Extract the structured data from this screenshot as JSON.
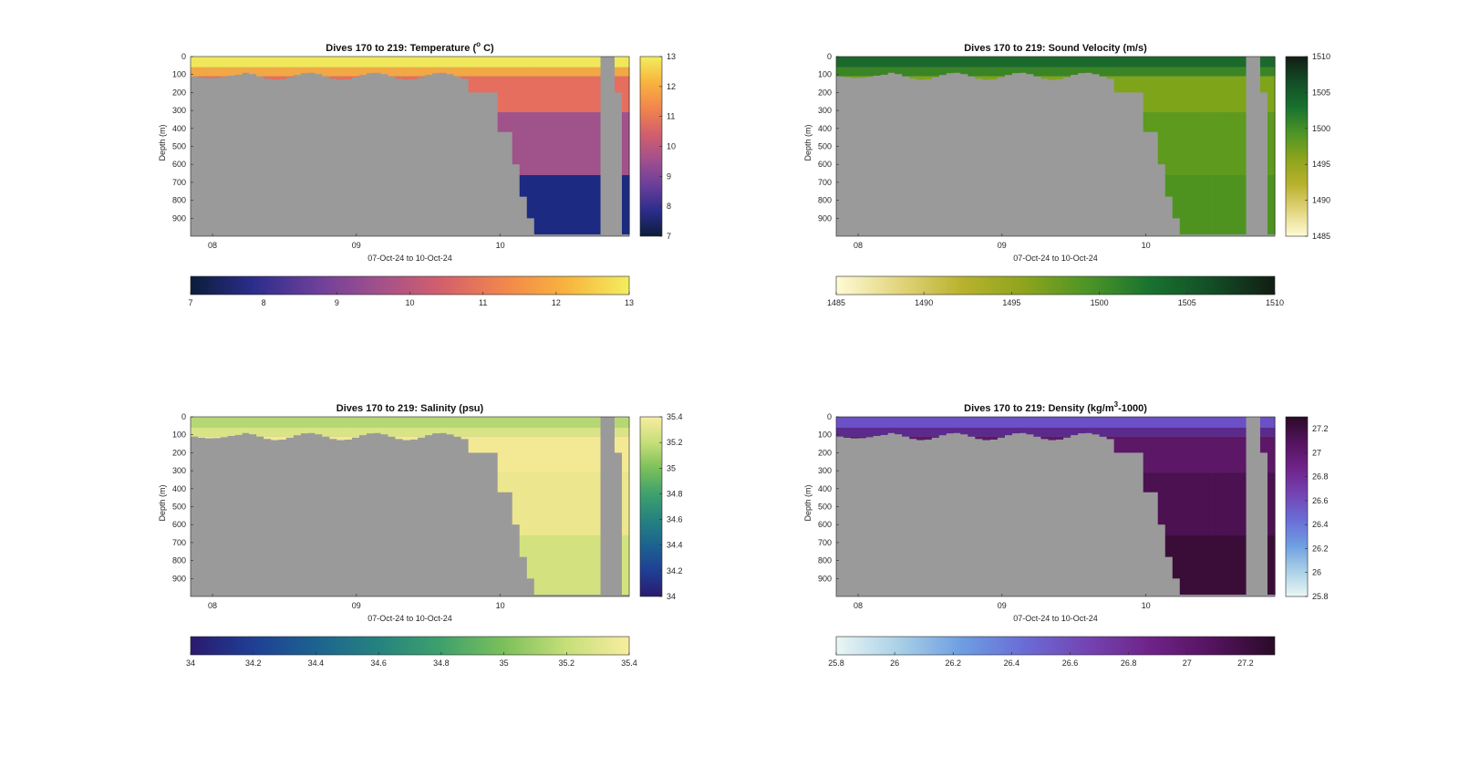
{
  "chart_data": [
    {
      "type": "heatmap",
      "title": "Dives 170 to 219: Temperature (°C)",
      "title_main": "Dives 170 to 219: Temperature (",
      "title_sup": "o",
      "title_tail": " C)",
      "ylabel": "Depth (m)",
      "xlabel": "07-Oct-24 to 10-Oct-24",
      "x_ticks": [
        "08",
        "09",
        "10"
      ],
      "y_ticks": [
        "0",
        "100",
        "200",
        "300",
        "400",
        "500",
        "600",
        "700",
        "800",
        "900"
      ],
      "ylim": [
        0,
        1000
      ],
      "colormap": [
        "#0b1d3a",
        "#2c2d8c",
        "#6b3f9a",
        "#a2508c",
        "#d35f6c",
        "#f2864c",
        "#f8b43e",
        "#f3ee5e"
      ],
      "clim": [
        7,
        13
      ],
      "colorbar_ticks": [
        "7",
        "8",
        "9",
        "10",
        "11",
        "12",
        "13"
      ],
      "deep_color": "#1c2a82",
      "mid_color": "#a0528a",
      "upper_color": "#e56e5f",
      "surface_color": "#f0e85a",
      "mixed_color": "#f1a845"
    },
    {
      "type": "heatmap",
      "title": "Dives 170 to 219: Sound Velocity (m/s)",
      "title_main": "Dives 170 to 219: Sound Velocity (m/s)",
      "title_sup": "",
      "title_tail": "",
      "ylabel": "Depth (m)",
      "xlabel": "07-Oct-24 to 10-Oct-24",
      "x_ticks": [
        "08",
        "09",
        "10"
      ],
      "y_ticks": [
        "0",
        "100",
        "200",
        "300",
        "400",
        "500",
        "600",
        "700",
        "800",
        "900"
      ],
      "ylim": [
        0,
        1000
      ],
      "colormap": [
        "#fefbd6",
        "#e2d57e",
        "#b9b22e",
        "#8ea41c",
        "#4d9526",
        "#19722f",
        "#134d26",
        "#111d14"
      ],
      "clim": [
        1485,
        1510
      ],
      "colorbar_ticks": [
        "1485",
        "1490",
        "1495",
        "1500",
        "1505",
        "1510"
      ],
      "deep_color": "#4e931f",
      "mid_color": "#5d9a1e",
      "upper_color": "#7ea41a",
      "surface_color": "#1b6a2c",
      "mixed_color": "#3a8426"
    },
    {
      "type": "heatmap",
      "title": "Dives 170 to 219: Salinity (psu)",
      "title_main": "Dives 170 to 219: Salinity (psu)",
      "title_sup": "",
      "title_tail": "",
      "ylabel": "Depth (m)",
      "xlabel": "07-Oct-24 to 10-Oct-24",
      "x_ticks": [
        "08",
        "09",
        "10"
      ],
      "y_ticks": [
        "0",
        "100",
        "200",
        "300",
        "400",
        "500",
        "600",
        "700",
        "800",
        "900"
      ],
      "ylim": [
        0,
        1000
      ],
      "colormap": [
        "#2a1a6e",
        "#1f3f94",
        "#1c6390",
        "#25837f",
        "#3ea16c",
        "#7cc05a",
        "#c6df79",
        "#f8ed9f"
      ],
      "clim": [
        34,
        35.4
      ],
      "colorbar_ticks": [
        "34",
        "34.2",
        "34.4",
        "34.6",
        "34.8",
        "35",
        "35.2",
        "35.4"
      ],
      "deep_color": "#d3e27e",
      "mid_color": "#ece68e",
      "upper_color": "#f3e994",
      "surface_color": "#b5d874",
      "mixed_color": "#d8e486"
    },
    {
      "type": "heatmap",
      "title": "Dives 170 to 219: Density (kg/m³-1000)",
      "title_main": "Dives 170 to 219: Density (kg/m",
      "title_sup": "3",
      "title_tail": "-1000)",
      "ylabel": "Depth (m)",
      "xlabel": "07-Oct-24 to 10-Oct-24",
      "x_ticks": [
        "08",
        "09",
        "10"
      ],
      "y_ticks": [
        "0",
        "100",
        "200",
        "300",
        "400",
        "500",
        "600",
        "700",
        "800",
        "900"
      ],
      "ylim": [
        0,
        1000
      ],
      "colormap": [
        "#eaf6f5",
        "#a9d0e6",
        "#6e9ee2",
        "#6a6cd6",
        "#7444b2",
        "#6f2389",
        "#54135e",
        "#2a0a28"
      ],
      "clim": [
        25.8,
        27.3
      ],
      "colorbar_ticks": [
        "25.8",
        "26",
        "26.2",
        "26.4",
        "26.6",
        "26.8",
        "27",
        "27.2"
      ],
      "deep_color": "#3a0d38",
      "mid_color": "#4b1150",
      "upper_color": "#5c1867",
      "surface_color": "#6b50c8",
      "mixed_color": "#5a2a8c"
    }
  ]
}
